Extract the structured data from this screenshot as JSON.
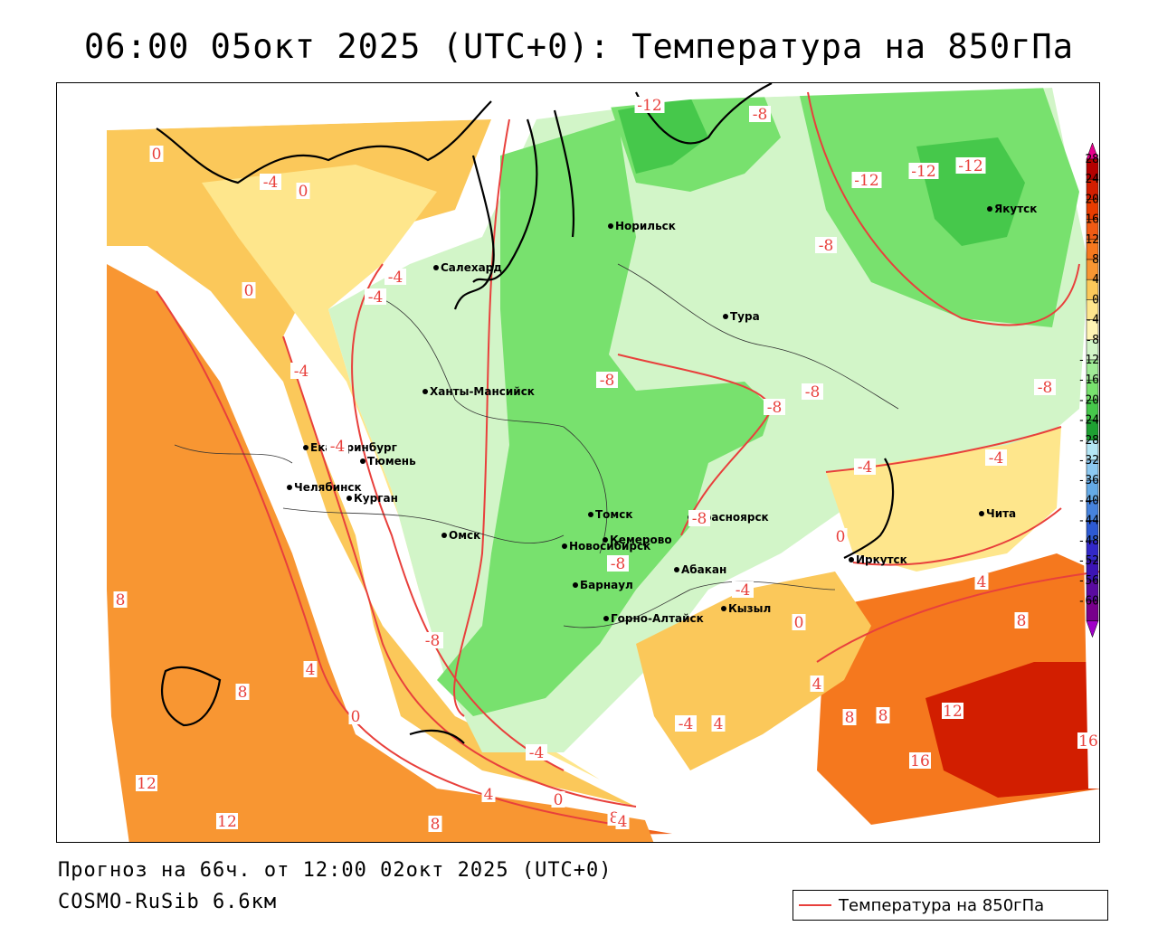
{
  "title": "06:00 05окт 2025 (UTC+0): Температура на 850гПа",
  "forecast_line": "Прогноз на 66ч. от 12:00 02окт 2025 (UTC+0)",
  "model_line": "COSMO-RuSib 6.6км",
  "legend": {
    "label": "Температура на 850гПа",
    "line_color": "#e8403c"
  },
  "colorbar": {
    "labels": [
      "28",
      "24",
      "20",
      "16",
      "12",
      "8",
      "4",
      "0",
      "-4",
      "-8",
      "-12",
      "-16",
      "-20",
      "-24",
      "-28",
      "-32",
      "-36",
      "-40",
      "-44",
      "-48",
      "-52",
      "-56",
      "-60"
    ],
    "colors": [
      "#b40000",
      "#d21e00",
      "#e83c00",
      "#f05a14",
      "#f5781e",
      "#f89632",
      "#fbc85a",
      "#fee68c",
      "#fff5b4",
      "#d2f5c8",
      "#a0eb96",
      "#78e16e",
      "#46c84b",
      "#1ea032",
      "#b4e6f5",
      "#8cc8f0",
      "#64aae6",
      "#4682dc",
      "#2d5ad2",
      "#3228c8",
      "#3c14b4",
      "#5a0aa0",
      "#78008c"
    ],
    "top_arrow": "#e6008c",
    "bottom_arrow": "#a000c8"
  },
  "cities": [
    {
      "name": "Норильск"
    },
    {
      "name": "Якутск"
    },
    {
      "name": "Салехард"
    },
    {
      "name": "Тура"
    },
    {
      "name": "Ханты-Мансийск"
    },
    {
      "name": "Екатеринбург"
    },
    {
      "name": "Тюмень"
    },
    {
      "name": "Челябинск"
    },
    {
      "name": "Курган"
    },
    {
      "name": "Омск"
    },
    {
      "name": "Томск"
    },
    {
      "name": "Красноярск"
    },
    {
      "name": "Чита"
    },
    {
      "name": "Новосибирск"
    },
    {
      "name": "Кемерово"
    },
    {
      "name": "Иркутск"
    },
    {
      "name": "Абакан"
    },
    {
      "name": "Барнаул"
    },
    {
      "name": "Кызыл"
    },
    {
      "name": "Горно-Алтайск"
    }
  ],
  "isotherm_labels": [
    {
      "text": "-12"
    },
    {
      "text": "-8"
    },
    {
      "text": "-12"
    },
    {
      "text": "-12"
    },
    {
      "text": "-12"
    },
    {
      "text": "0"
    },
    {
      "text": "-4"
    },
    {
      "text": "0"
    },
    {
      "text": "-8"
    },
    {
      "text": "-4"
    },
    {
      "text": "-4"
    },
    {
      "text": "0"
    },
    {
      "text": "-4"
    },
    {
      "text": "-8"
    },
    {
      "text": "-8"
    },
    {
      "text": "-8"
    },
    {
      "text": "-8"
    },
    {
      "text": "-4"
    },
    {
      "text": "-4"
    },
    {
      "text": "-8"
    },
    {
      "text": "-4"
    },
    {
      "text": "0"
    },
    {
      "text": "-8"
    },
    {
      "text": "-4"
    },
    {
      "text": "4"
    },
    {
      "text": "8"
    },
    {
      "text": "-8"
    },
    {
      "text": "4"
    },
    {
      "text": "8"
    },
    {
      "text": "0"
    },
    {
      "text": "8"
    },
    {
      "text": "4"
    },
    {
      "text": "12"
    },
    {
      "text": "0"
    },
    {
      "text": "8"
    },
    {
      "text": "16"
    },
    {
      "text": "-4"
    },
    {
      "text": "4"
    },
    {
      "text": "12"
    },
    {
      "text": "4"
    },
    {
      "text": "0"
    },
    {
      "text": "12"
    },
    {
      "text": "8"
    },
    {
      "text": "8"
    },
    {
      "text": "4"
    },
    {
      "text": "8"
    },
    {
      "text": "-4"
    },
    {
      "text": "16"
    }
  ]
}
